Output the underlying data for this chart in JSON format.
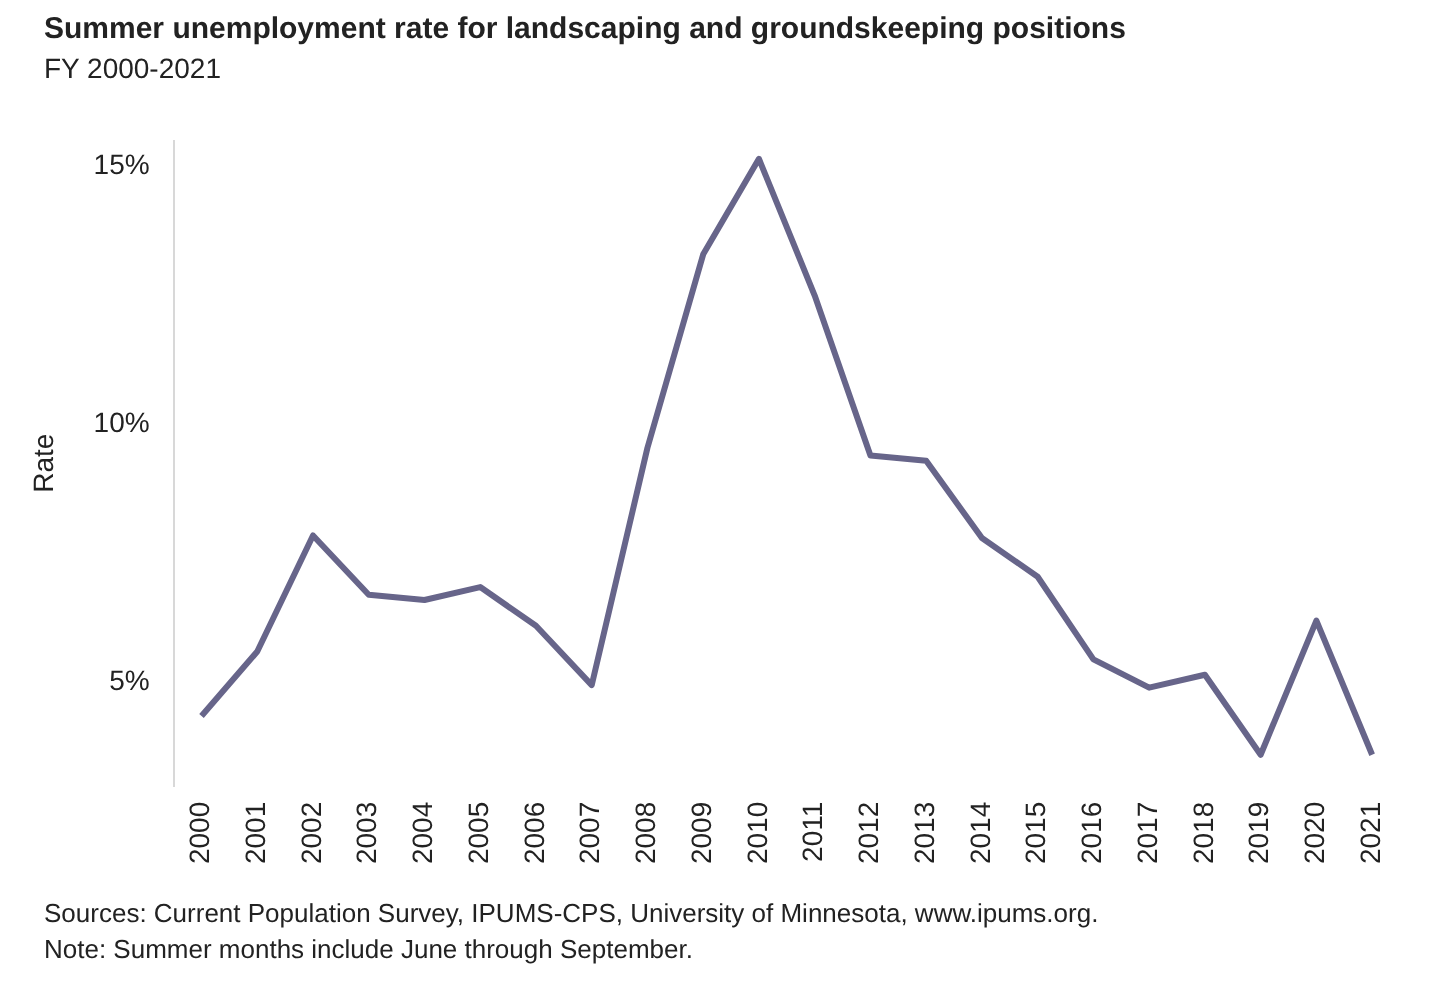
{
  "chart_data": {
    "type": "line",
    "title": "Summer unemployment rate for landscaping and groundskeeping positions",
    "subtitle": "FY 2000-2021",
    "ylabel": "Rate",
    "categories": [
      "2000",
      "2001",
      "2002",
      "2003",
      "2004",
      "2005",
      "2006",
      "2007",
      "2008",
      "2009",
      "2010",
      "2011",
      "2012",
      "2013",
      "2014",
      "2015",
      "2016",
      "2017",
      "2018",
      "2019",
      "2020",
      "2021"
    ],
    "series": [
      {
        "color": "#67658a",
        "values": [
          4.35,
          5.6,
          7.85,
          6.7,
          6.6,
          6.85,
          6.1,
          4.95,
          9.55,
          13.3,
          15.15,
          12.5,
          9.4,
          9.3,
          7.8,
          7.05,
          5.45,
          4.9,
          5.15,
          3.6,
          6.2,
          3.6
        ]
      }
    ],
    "ylim": [
      3,
      15.5
    ],
    "yticks": [
      {
        "value": 5,
        "label": "5%"
      },
      {
        "value": 10,
        "label": "10%"
      },
      {
        "value": 15,
        "label": "15%"
      }
    ],
    "grid": false,
    "legend": false,
    "marker": "none",
    "line_style": "solid",
    "annotations": [
      "Sources: Current Population Survey, IPUMS-CPS, University of Minnesota, www.ipums.org.",
      "Note: Summer months include June through September."
    ]
  }
}
